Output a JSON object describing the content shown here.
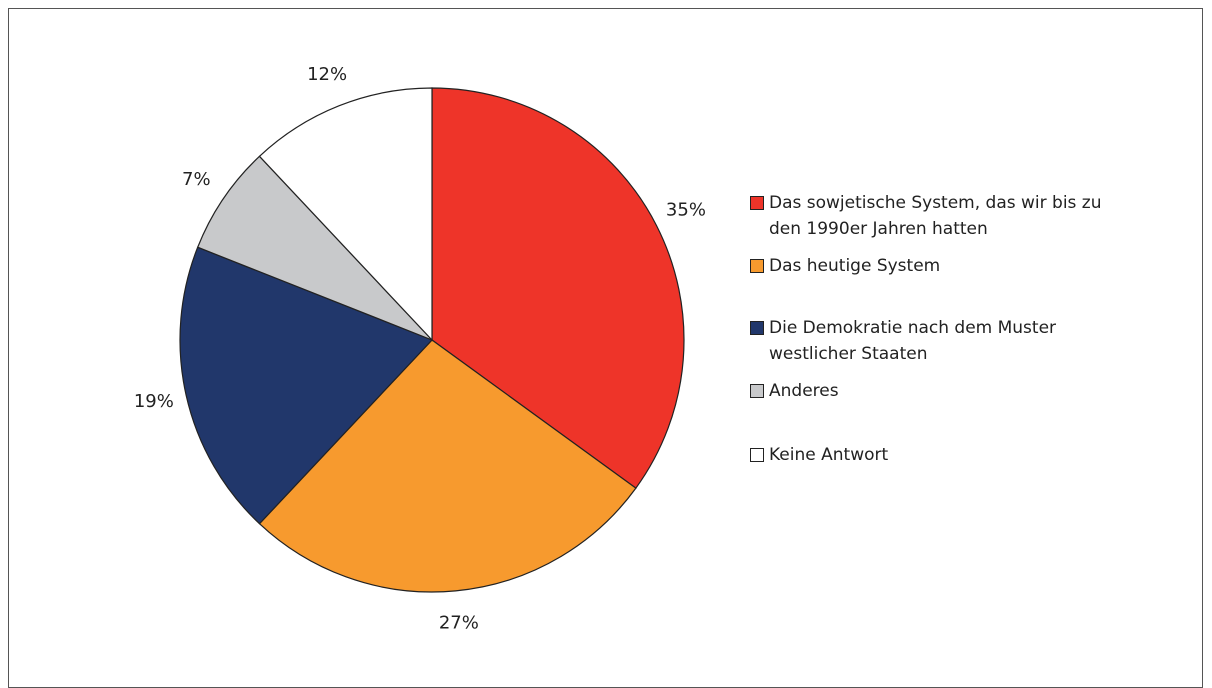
{
  "chart_data": {
    "type": "pie",
    "categories": [
      "Das sowjetische System, das wir bis zu den 1990er Jahren hatten",
      "Das heutige System",
      "Die Demokratie nach dem Muster westlicher Staaten",
      "Anderes",
      "Keine Antwort"
    ],
    "values": [
      35,
      27,
      19,
      7,
      12
    ],
    "value_labels": [
      "35%",
      "27%",
      "19%",
      "7%",
      "12%"
    ],
    "colors": [
      "#ee3429",
      "#f79a2e",
      "#21376b",
      "#c8c9cb",
      "#ffffff"
    ],
    "legend": "right"
  }
}
